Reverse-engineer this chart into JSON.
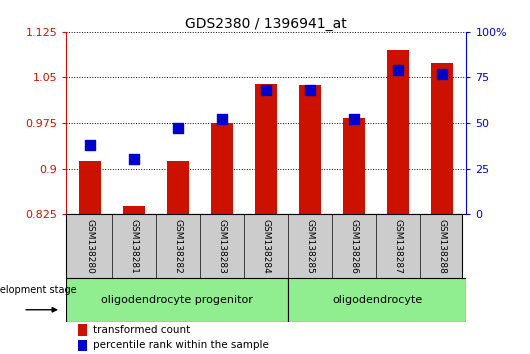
{
  "title": "GDS2380 / 1396941_at",
  "samples": [
    "GSM138280",
    "GSM138281",
    "GSM138282",
    "GSM138283",
    "GSM138284",
    "GSM138285",
    "GSM138286",
    "GSM138287",
    "GSM138288"
  ],
  "transformed_count": [
    0.912,
    0.838,
    0.912,
    0.975,
    1.04,
    1.038,
    0.983,
    1.095,
    1.073
  ],
  "percentile_rank": [
    38,
    30,
    47,
    52,
    68,
    68,
    52,
    79,
    77
  ],
  "ylim_left": [
    0.825,
    1.125
  ],
  "ylim_right": [
    0,
    100
  ],
  "yticks_left": [
    0.825,
    0.9,
    0.975,
    1.05,
    1.125
  ],
  "yticks_right": [
    0,
    25,
    50,
    75,
    100
  ],
  "ytick_labels_left": [
    "0.825",
    "0.9",
    "0.975",
    "1.05",
    "1.125"
  ],
  "ytick_labels_right": [
    "0",
    "25",
    "50",
    "75",
    "100%"
  ],
  "bar_color": "#cc1100",
  "dot_color": "#0000cc",
  "bar_width": 0.5,
  "dot_size": 45,
  "left_axis_color": "#cc1100",
  "right_axis_color": "#0000cc",
  "background_label": "#cccccc",
  "group1_label": "oligodendrocyte progenitor",
  "group2_label": "oligodendrocyte",
  "group_color": "#90ee90",
  "legend_items": [
    {
      "label": "transformed count",
      "color": "#cc1100"
    },
    {
      "label": "percentile rank within the sample",
      "color": "#0000cc"
    }
  ],
  "dev_stage_text": "development stage"
}
